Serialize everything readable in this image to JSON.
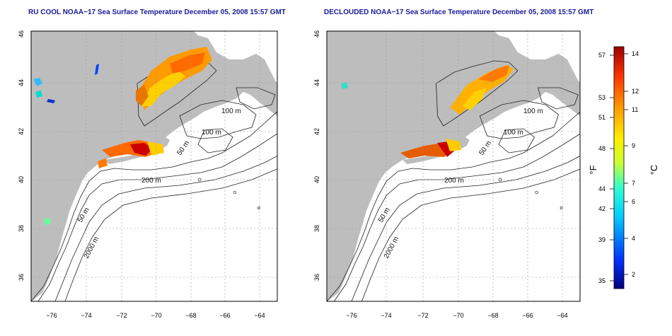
{
  "panels": [
    {
      "title": "RU COOL NOAA−17 Sea Surface Temperature December 05, 2008 15:57 GMT"
    },
    {
      "title": "DECLOUDED NOAA−17 Sea Surface Temperature December 05, 2008 15:57 GMT"
    }
  ],
  "map_axes": {
    "x_ticks": [
      "−76",
      "−74",
      "−72",
      "−70",
      "−68",
      "−66",
      "−64"
    ],
    "y_ticks": [
      "46",
      "44",
      "42",
      "40",
      "38",
      "36"
    ]
  },
  "contour_labels": [
    "100 m",
    "100 m",
    "50 m",
    "200 m",
    "50 m",
    "2000 m"
  ],
  "colorbar": {
    "left_label": "°F",
    "right_label": "°C",
    "fahrenheit_ticks": [
      "57",
      "53",
      "51",
      "48",
      "44",
      "42",
      "39",
      "35"
    ],
    "celsius_ticks": [
      "14",
      "12",
      "11",
      "9",
      "7",
      "6",
      "4",
      "2"
    ]
  },
  "colors": {
    "land": "#bdbdbd",
    "title": "#1a1a9a",
    "contour": "#222222"
  }
}
